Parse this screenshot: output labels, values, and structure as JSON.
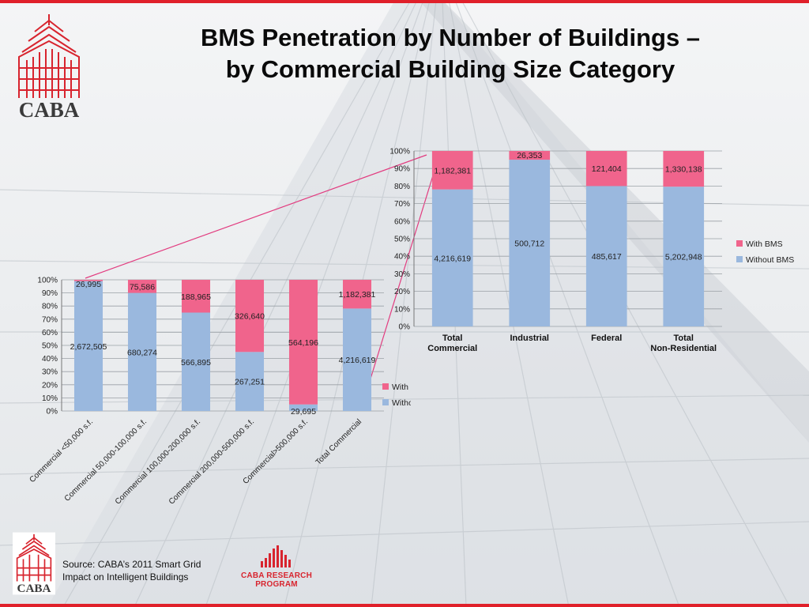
{
  "slide": {
    "title_line1": "BMS Penetration by Number of Buildings –",
    "title_line2": "by Commercial Building Size Category",
    "logo_text": "CABA",
    "source_line1": "Source: CABA’s 2011 Smart Grid",
    "source_line2": "Impact on Intelligent Buildings",
    "program_line1": "CABA RESEARCH",
    "program_line2": "PROGRAM",
    "colors": {
      "accent_red": "#e0202a",
      "with_bms": "#f0648c",
      "without_bms": "#9ab8de"
    }
  },
  "chart_data": [
    {
      "type": "bar",
      "stacked": "percent",
      "categories": [
        "Commercial <50,000 s.f.",
        "Commercial 50,000-100,000 s.f.",
        "Commercial 100,000-200,000 s.f.",
        "Commercial 200,000-500,000 s.f.",
        "Commercial>500,000 s.f.",
        "Total Commercial"
      ],
      "series": [
        {
          "name": "With BMS",
          "values": [
            26995,
            75586,
            188965,
            326640,
            564196,
            1182381
          ],
          "labels": [
            "26,995",
            "75,586",
            "188,965",
            "326,640",
            "564,196",
            "1,182,381"
          ]
        },
        {
          "name": "Without BMS",
          "values": [
            2672505,
            680274,
            566895,
            267251,
            29695,
            4216619
          ],
          "labels": [
            "2,672,505",
            "680,274",
            "566,895",
            "267,251",
            "29,695",
            "4,216,619"
          ]
        }
      ],
      "y_ticks": [
        "0%",
        "10%",
        "20%",
        "30%",
        "40%",
        "50%",
        "60%",
        "70%",
        "80%",
        "90%",
        "100%"
      ],
      "ylim": [
        0,
        100
      ],
      "grid": true,
      "legend": "bottom-right"
    },
    {
      "type": "bar",
      "stacked": "percent",
      "categories": [
        "Total Commercial",
        "Industrial",
        "Federal",
        "Total Non-Residential"
      ],
      "series": [
        {
          "name": "With BMS",
          "values": [
            1182381,
            26353,
            121404,
            1330138
          ],
          "labels": [
            "1,182,381",
            "26,353",
            "121,404",
            "1,330,138"
          ]
        },
        {
          "name": "Without BMS",
          "values": [
            4216619,
            500712,
            485617,
            5202948
          ],
          "labels": [
            "4,216,619",
            "500,712",
            "485,617",
            "5,202,948"
          ]
        }
      ],
      "y_ticks": [
        "0%",
        "10%",
        "20%",
        "30%",
        "40%",
        "50%",
        "60%",
        "70%",
        "80%",
        "90%",
        "100%"
      ],
      "ylim": [
        0,
        100
      ],
      "grid": true,
      "legend": "right"
    }
  ]
}
